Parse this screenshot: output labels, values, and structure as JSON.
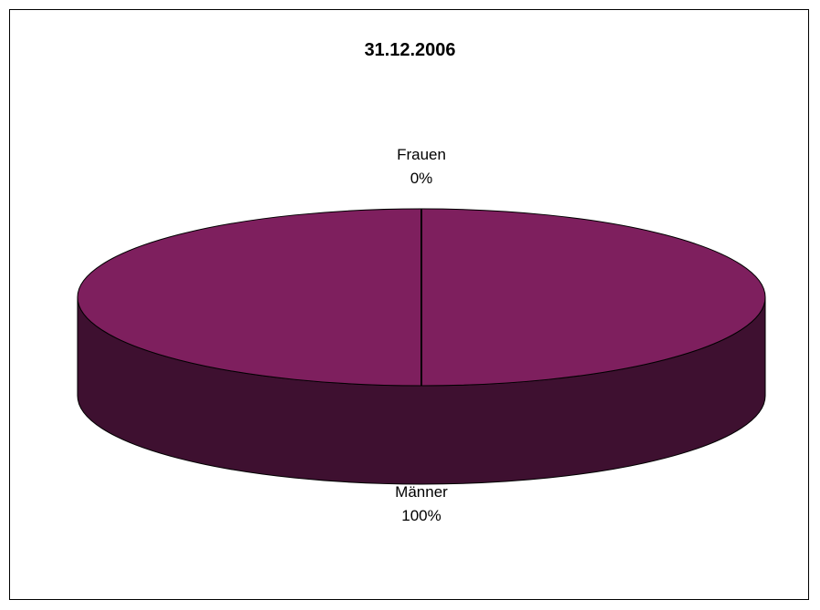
{
  "chart_data": {
    "type": "pie",
    "title": "31.12.2006",
    "three_d": true,
    "slices": [
      {
        "label": "Frauen",
        "value": 0,
        "percent_label": "0%",
        "color": "#D7A8D7"
      },
      {
        "label": "Männer",
        "value": 100,
        "percent_label": "100%",
        "color": "#7E1F5E",
        "side_color": "#3E1030"
      }
    ],
    "legend": "none",
    "outline_color": "#000000"
  }
}
